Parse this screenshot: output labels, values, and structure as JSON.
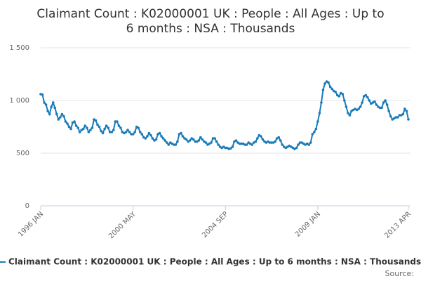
{
  "chart_data": {
    "type": "line",
    "title": [
      "Claimant Count : K02000001 UK : People : All Ages : Up to",
      "6 months : NSA : Thousands"
    ],
    "source": "Source:",
    "categories": [
      "1996 JAN",
      null,
      null,
      null,
      null,
      null,
      null,
      null,
      null,
      null,
      null,
      null,
      null,
      null,
      null,
      null,
      null,
      null,
      null,
      null,
      null,
      null,
      null,
      null,
      null,
      null,
      null,
      null,
      null,
      null,
      null,
      null,
      null,
      null,
      null,
      null,
      null,
      null,
      null,
      null,
      null,
      null,
      null,
      null,
      null,
      null,
      null,
      null,
      null,
      null,
      null,
      null,
      "2000 MAY",
      null,
      null,
      null,
      null,
      null,
      null,
      null,
      null,
      null,
      null,
      null,
      null,
      null,
      null,
      null,
      null,
      null,
      null,
      null,
      null,
      null,
      null,
      null,
      null,
      null,
      null,
      null,
      null,
      null,
      null,
      null,
      null,
      null,
      null,
      null,
      null,
      null,
      null,
      null,
      null,
      null,
      null,
      null,
      null,
      null,
      null,
      null,
      null,
      null,
      null,
      null,
      "2004 SEP",
      null,
      null,
      null,
      null,
      null,
      null,
      null,
      null,
      null,
      null,
      null,
      null,
      null,
      null,
      null,
      null,
      null,
      null,
      null,
      null,
      null,
      null,
      null,
      null,
      null,
      null,
      null,
      null,
      null,
      null,
      null,
      null,
      null,
      null,
      null,
      null,
      null,
      null,
      null,
      null,
      null,
      null,
      null,
      null,
      null,
      null,
      null,
      null,
      null,
      null,
      null,
      "2009 JAN",
      null,
      null,
      null,
      null,
      null,
      null,
      null,
      null,
      null,
      null,
      null,
      null,
      null,
      null,
      null,
      null,
      null,
      null,
      null,
      null,
      null,
      null,
      null,
      null,
      null,
      null,
      null,
      null,
      null,
      null,
      null,
      null,
      null,
      null,
      null,
      null,
      null,
      null,
      null,
      null,
      null,
      null,
      null,
      null,
      null,
      null,
      null,
      null,
      null,
      null,
      "2013 APR"
    ],
    "series": [
      {
        "name": "Claimant Count : K02000001 UK : People : All Ages : Up to 6 months : NSA : Thousands",
        "color": "#1a7bb9",
        "values": [
          1060,
          1055,
          980,
          960,
          900,
          870,
          940,
          980,
          930,
          870,
          820,
          840,
          870,
          850,
          800,
          780,
          750,
          730,
          790,
          800,
          760,
          740,
          700,
          720,
          730,
          760,
          740,
          700,
          720,
          740,
          820,
          810,
          770,
          750,
          710,
          690,
          730,
          760,
          740,
          700,
          700,
          720,
          800,
          800,
          760,
          740,
          700,
          690,
          700,
          720,
          700,
          680,
          680,
          700,
          750,
          740,
          700,
          680,
          650,
          640,
          660,
          690,
          670,
          640,
          620,
          630,
          680,
          690,
          660,
          640,
          620,
          600,
          580,
          600,
          590,
          580,
          580,
          610,
          680,
          690,
          660,
          640,
          630,
          610,
          620,
          640,
          630,
          610,
          610,
          620,
          650,
          630,
          610,
          600,
          580,
          590,
          600,
          640,
          640,
          610,
          580,
          560,
          550,
          560,
          550,
          550,
          540,
          545,
          560,
          610,
          620,
          600,
          590,
          590,
          590,
          580,
          580,
          600,
          590,
          580,
          600,
          610,
          640,
          670,
          660,
          630,
          610,
          600,
          610,
          600,
          600,
          600,
          610,
          640,
          650,
          620,
          580,
          560,
          550,
          560,
          570,
          560,
          550,
          540,
          550,
          580,
          600,
          600,
          590,
          580,
          590,
          580,
          600,
          680,
          700,
          730,
          800,
          880,
          980,
          1100,
          1160,
          1180,
          1170,
          1130,
          1110,
          1090,
          1080,
          1050,
          1040,
          1070,
          1060,
          1000,
          940,
          880,
          860,
          900,
          910,
          920,
          910,
          920,
          940,
          980,
          1040,
          1050,
          1030,
          1000,
          970,
          980,
          990,
          960,
          940,
          930,
          930,
          980,
          1000,
          960,
          900,
          850,
          820,
          830,
          840,
          840,
          860,
          860,
          870,
          920,
          900,
          820
        ]
      }
    ],
    "ylim": [
      0,
      1500
    ],
    "yticks": [
      0,
      500,
      {
        "value": 1000,
        "label": "1 000"
      },
      {
        "value": 1500,
        "label": "1 500"
      }
    ],
    "grid": true
  }
}
